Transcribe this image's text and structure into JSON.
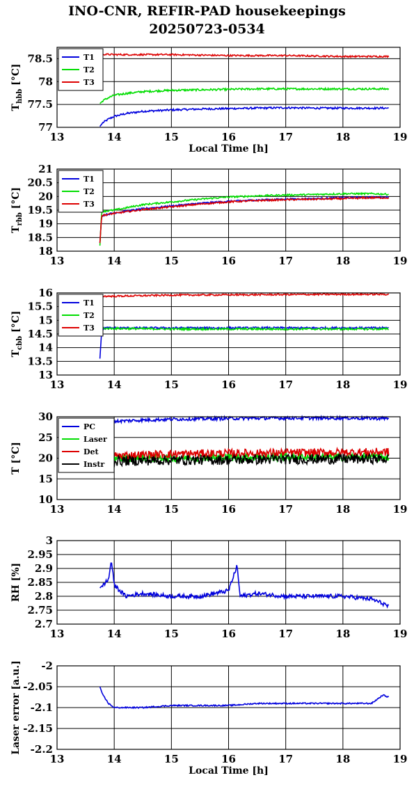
{
  "title_line1": "INO-CNR, REFIR-PAD housekeepings",
  "title_line2": "20250723-0534",
  "colors": {
    "blue": "#0000dd",
    "green": "#00dd00",
    "red": "#dd0000",
    "black": "#000000"
  },
  "chart_data": [
    {
      "type": "line",
      "ylabel_main": "T",
      "ylabel_sub": "hbb",
      "ylabel_unit": " [°C]",
      "xlabel": "Local Time [h]",
      "xlim": [
        13,
        19
      ],
      "ylim": [
        77,
        78.75
      ],
      "xticks": [
        "13",
        "14",
        "15",
        "16",
        "17",
        "18",
        "19"
      ],
      "yticks": [
        {
          "v": 77,
          "t": "77"
        },
        {
          "v": 77.5,
          "t": "77.5"
        },
        {
          "v": 78,
          "t": "78"
        },
        {
          "v": 78.5,
          "t": "78.5"
        }
      ],
      "grid": true,
      "legend_position": "top-left",
      "series": [
        {
          "name": "T1",
          "color": "blue",
          "x": [
            13.75,
            13.8,
            13.9,
            14,
            14.2,
            14.5,
            15,
            15.5,
            16,
            16.5,
            17,
            17.5,
            18,
            18.5,
            18.8
          ],
          "y": [
            77.02,
            77.1,
            77.18,
            77.24,
            77.3,
            77.35,
            77.38,
            77.4,
            77.41,
            77.42,
            77.43,
            77.42,
            77.42,
            77.42,
            77.42
          ]
        },
        {
          "name": "T2",
          "color": "green",
          "x": [
            13.75,
            13.8,
            13.9,
            14,
            14.2,
            14.5,
            15,
            15.5,
            16,
            16.5,
            17,
            17.5,
            18,
            18.5,
            18.8
          ],
          "y": [
            77.52,
            77.58,
            77.65,
            77.7,
            77.74,
            77.78,
            77.81,
            77.82,
            77.83,
            77.84,
            77.84,
            77.84,
            77.84,
            77.84,
            77.84
          ]
        },
        {
          "name": "T3",
          "color": "red",
          "x": [
            13.75,
            14,
            14.5,
            15,
            15.5,
            16,
            16.5,
            17,
            17.5,
            18,
            18.5,
            18.8
          ],
          "y": [
            78.6,
            78.59,
            78.59,
            78.59,
            78.58,
            78.57,
            78.57,
            78.57,
            78.56,
            78.55,
            78.55,
            78.55
          ]
        }
      ],
      "noise": [
        0.012,
        0.012,
        0.01
      ]
    },
    {
      "type": "line",
      "ylabel_main": "T",
      "ylabel_sub": "rbb",
      "ylabel_unit": " [°C]",
      "xlabel": "",
      "xlim": [
        13,
        19
      ],
      "ylim": [
        18,
        21
      ],
      "xticks": [
        "13",
        "14",
        "15",
        "16",
        "17",
        "18",
        "19"
      ],
      "yticks": [
        {
          "v": 18,
          "t": "18"
        },
        {
          "v": 18.5,
          "t": "18.5"
        },
        {
          "v": 19,
          "t": "19"
        },
        {
          "v": 19.5,
          "t": "19.5"
        },
        {
          "v": 20,
          "t": "20"
        },
        {
          "v": 20.5,
          "t": "20.5"
        },
        {
          "v": 21,
          "t": "21"
        }
      ],
      "grid": true,
      "legend_position": "top-left",
      "series": [
        {
          "name": "T1",
          "color": "blue",
          "x": [
            13.75,
            13.78,
            14,
            14.5,
            15,
            15.5,
            16,
            16.5,
            17,
            17.5,
            18,
            18.5,
            18.8
          ],
          "y": [
            18.3,
            19.3,
            19.4,
            19.55,
            19.65,
            19.75,
            19.82,
            19.87,
            19.9,
            19.92,
            19.95,
            19.97,
            19.97
          ]
        },
        {
          "name": "T2",
          "color": "green",
          "x": [
            13.75,
            13.78,
            14,
            14.5,
            15,
            15.5,
            16,
            16.5,
            17,
            17.5,
            18,
            18.5,
            18.8
          ],
          "y": [
            18.2,
            19.45,
            19.5,
            19.7,
            19.8,
            19.9,
            19.98,
            20.02,
            20.05,
            20.07,
            20.1,
            20.1,
            20.08
          ]
        },
        {
          "name": "T3",
          "color": "red",
          "x": [
            13.75,
            13.78,
            14,
            14.5,
            15,
            15.5,
            16,
            16.5,
            17,
            17.5,
            18,
            18.5,
            18.8
          ],
          "y": [
            18.3,
            19.3,
            19.38,
            19.52,
            19.62,
            19.72,
            19.8,
            19.85,
            19.88,
            19.9,
            19.92,
            19.95,
            19.95
          ]
        }
      ],
      "noise": [
        0.01,
        0.01,
        0.01
      ]
    },
    {
      "type": "line",
      "ylabel_main": "T",
      "ylabel_sub": "cbb",
      "ylabel_unit": " [°C]",
      "xlabel": "",
      "xlim": [
        13,
        19
      ],
      "ylim": [
        13,
        16
      ],
      "xticks": [
        "13",
        "14",
        "15",
        "16",
        "17",
        "18",
        "19"
      ],
      "yticks": [
        {
          "v": 13,
          "t": "13"
        },
        {
          "v": 13.5,
          "t": "13.5"
        },
        {
          "v": 14,
          "t": "14"
        },
        {
          "v": 14.5,
          "t": "14.5"
        },
        {
          "v": 15,
          "t": "15"
        },
        {
          "v": 15.5,
          "t": "15.5"
        },
        {
          "v": 16,
          "t": "16"
        }
      ],
      "grid": true,
      "legend_position": "top-left",
      "series": [
        {
          "name": "T1",
          "color": "blue",
          "x": [
            13.75,
            13.78,
            13.82,
            14,
            15,
            16,
            17,
            18,
            18.8
          ],
          "y": [
            13.6,
            14.6,
            14.72,
            14.72,
            14.72,
            14.72,
            14.72,
            14.72,
            14.72
          ]
        },
        {
          "name": "T2",
          "color": "green",
          "x": [
            13.75,
            13.78,
            13.82,
            14,
            15,
            16,
            17,
            18,
            18.8
          ],
          "y": [
            14.5,
            14.75,
            14.7,
            14.7,
            14.68,
            14.68,
            14.68,
            14.68,
            14.68
          ]
        },
        {
          "name": "T3",
          "color": "red",
          "x": [
            13.75,
            13.8,
            14,
            15,
            16,
            17,
            18,
            18.8
          ],
          "y": [
            15.95,
            15.88,
            15.88,
            15.92,
            15.93,
            15.94,
            15.95,
            15.95
          ]
        }
      ],
      "noise": [
        0.012,
        0.012,
        0.01
      ]
    },
    {
      "type": "line",
      "ylabel_main": "T [°C]",
      "ylabel_sub": "",
      "ylabel_unit": "",
      "xlabel": "",
      "xlim": [
        13,
        19
      ],
      "ylim": [
        10,
        30
      ],
      "xticks": [
        "13",
        "14",
        "15",
        "16",
        "17",
        "18",
        "19"
      ],
      "yticks": [
        {
          "v": 10,
          "t": "10"
        },
        {
          "v": 15,
          "t": "15"
        },
        {
          "v": 20,
          "t": "20"
        },
        {
          "v": 25,
          "t": "25"
        },
        {
          "v": 30,
          "t": "30"
        }
      ],
      "grid": true,
      "legend_position": "top-left",
      "series": [
        {
          "name": "PC",
          "color": "blue",
          "x": [
            13.75,
            14,
            14.5,
            15,
            15.5,
            16,
            17,
            18,
            18.8
          ],
          "y": [
            28.6,
            28.9,
            29.2,
            29.4,
            29.5,
            29.6,
            29.7,
            29.7,
            29.6
          ]
        },
        {
          "name": "Laser",
          "color": "green",
          "x": [
            13.75,
            14,
            15,
            16,
            17,
            18,
            18.8
          ],
          "y": [
            19.8,
            19.9,
            20.1,
            20.2,
            20.3,
            20.3,
            20.3
          ]
        },
        {
          "name": "Det",
          "color": "red",
          "x": [
            13.75,
            14,
            14.5,
            15,
            16,
            17,
            18,
            18.8
          ],
          "y": [
            20.4,
            20.6,
            20.8,
            21.0,
            21.2,
            21.3,
            21.4,
            21.5
          ]
        },
        {
          "name": "Instr",
          "color": "black",
          "x": [
            13.75,
            14,
            15,
            16,
            17,
            18,
            18.8
          ],
          "y": [
            19.2,
            19.3,
            19.5,
            19.6,
            19.7,
            19.8,
            19.8
          ]
        }
      ],
      "noise": [
        0.02,
        0.05,
        0.05,
        0.06
      ]
    },
    {
      "type": "line",
      "ylabel_main": "RH [%]",
      "ylabel_sub": "",
      "ylabel_unit": "",
      "xlabel": "",
      "xlim": [
        13,
        19
      ],
      "ylim": [
        2.7,
        3
      ],
      "xticks": [
        "13",
        "14",
        "15",
        "16",
        "17",
        "18",
        "19"
      ],
      "yticks": [
        {
          "v": 2.7,
          "t": "2.7"
        },
        {
          "v": 2.75,
          "t": "2.75"
        },
        {
          "v": 2.8,
          "t": "2.8"
        },
        {
          "v": 2.85,
          "t": "2.85"
        },
        {
          "v": 2.9,
          "t": "2.9"
        },
        {
          "v": 2.95,
          "t": "2.95"
        },
        {
          "v": 3,
          "t": "3"
        }
      ],
      "grid": true,
      "legend_position": "none",
      "series": [
        {
          "name": "",
          "color": "blue",
          "x": [
            13.75,
            13.9,
            13.95,
            14.0,
            14.2,
            14.5,
            15,
            15.5,
            16,
            16.15,
            16.2,
            16.5,
            17,
            17.5,
            18,
            18.5,
            18.75,
            18.8
          ],
          "y": [
            2.83,
            2.86,
            2.93,
            2.84,
            2.8,
            2.81,
            2.8,
            2.8,
            2.82,
            2.91,
            2.8,
            2.81,
            2.8,
            2.8,
            2.8,
            2.79,
            2.77,
            2.76
          ]
        }
      ],
      "noise": [
        0.025
      ]
    },
    {
      "type": "line",
      "ylabel_main": "Laser error [a.u.]",
      "ylabel_sub": "",
      "ylabel_unit": "",
      "xlabel": "Local Time [h]",
      "xlim": [
        13,
        19
      ],
      "ylim": [
        -2.2,
        -2
      ],
      "xticks": [
        "13",
        "14",
        "15",
        "16",
        "17",
        "18",
        "19"
      ],
      "yticks": [
        {
          "v": -2.2,
          "t": "-2.2"
        },
        {
          "v": -2.15,
          "t": "-2.15"
        },
        {
          "v": -2.1,
          "t": "-2.1"
        },
        {
          "v": -2.05,
          "t": "-2.05"
        },
        {
          "v": -2,
          "t": "-2"
        }
      ],
      "grid": true,
      "legend_position": "none",
      "series": [
        {
          "name": "",
          "color": "blue",
          "x": [
            13.75,
            13.8,
            13.9,
            14.0,
            14.5,
            15,
            15.5,
            16,
            16.5,
            17,
            17.5,
            18,
            18.5,
            18.7,
            18.8
          ],
          "y": [
            -2.05,
            -2.07,
            -2.09,
            -2.1,
            -2.1,
            -2.095,
            -2.095,
            -2.095,
            -2.09,
            -2.09,
            -2.09,
            -2.09,
            -2.09,
            -2.07,
            -2.075
          ]
        }
      ],
      "noise": [
        0.008
      ]
    }
  ]
}
